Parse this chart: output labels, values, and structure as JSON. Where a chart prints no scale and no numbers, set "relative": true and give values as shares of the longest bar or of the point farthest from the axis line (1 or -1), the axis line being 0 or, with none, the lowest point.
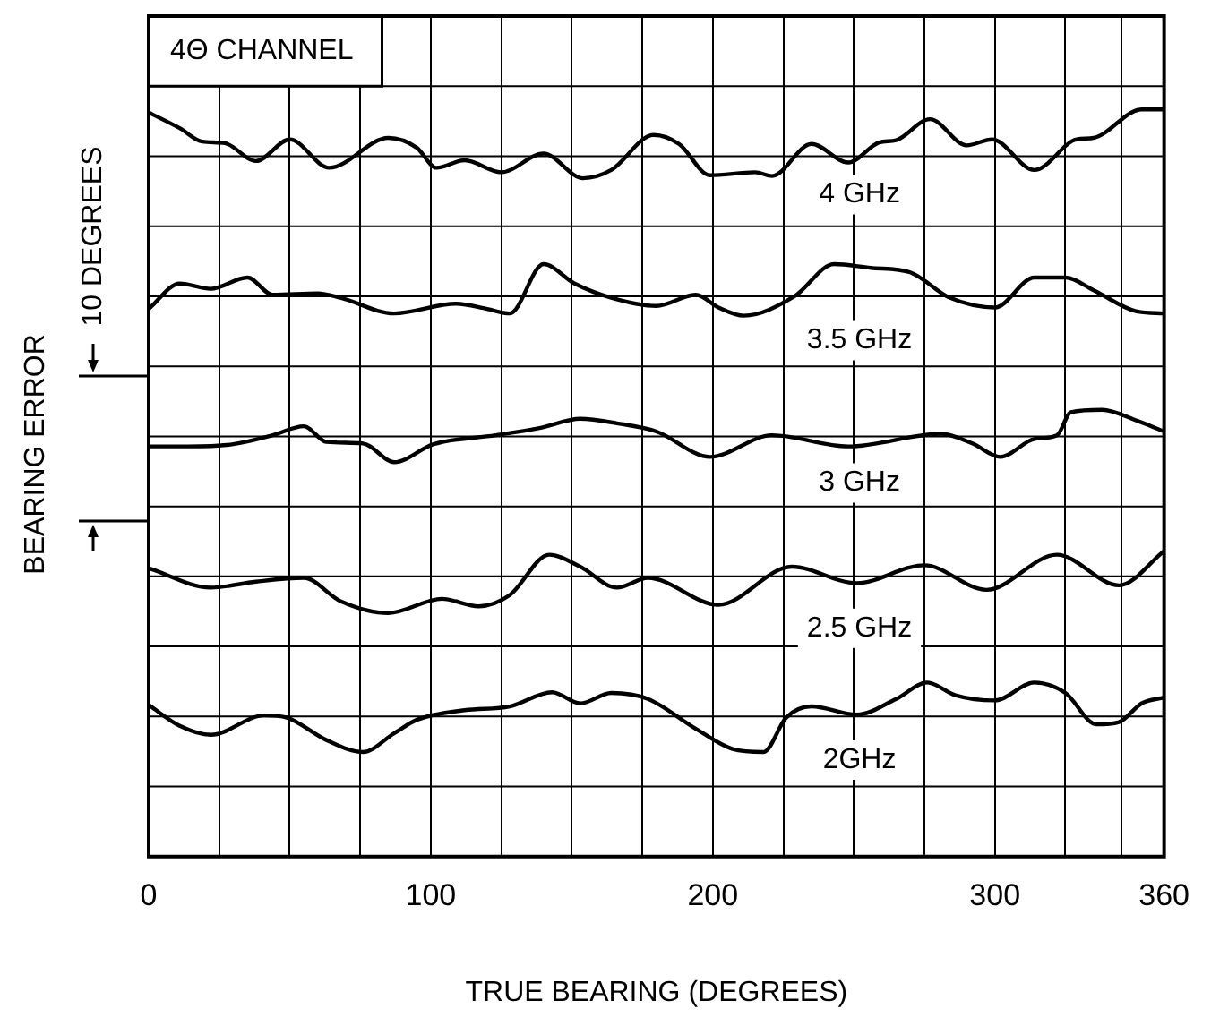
{
  "chart_data": {
    "type": "line",
    "relative": true,
    "marker": "none",
    "grid": true,
    "legend": false,
    "xlabel": "TRUE BEARING (DEGREES)",
    "ylabel": "BEARING ERROR",
    "annotations": [
      "4Θ CHANNEL",
      "10 DEGREES"
    ],
    "xlim": [
      0,
      360
    ],
    "xticks": [
      0,
      {
        "value": 25,
        "label": null
      },
      {
        "value": 50,
        "label": null
      },
      {
        "value": 75,
        "label": null
      },
      100,
      {
        "value": 125,
        "label": null
      },
      {
        "value": 150,
        "label": null
      },
      {
        "value": 175,
        "label": null
      },
      200,
      {
        "value": 225,
        "label": null
      },
      {
        "value": 250,
        "label": null
      },
      {
        "value": 275,
        "label": null
      },
      300,
      {
        "value": 325,
        "label": null
      },
      {
        "value": 345,
        "label": null
      },
      360
    ],
    "series": [
      {
        "name": "4 GHz",
        "color": "#000000",
        "x": [
          0,
          11,
          19,
          27,
          38,
          50,
          64,
          85,
          95,
          102,
          112,
          125,
          140,
          154,
          164,
          179,
          188,
          199,
          215,
          221,
          235,
          248,
          259,
          265,
          277,
          290,
          299,
          314,
          329,
          335,
          352,
          360
        ],
        "values": [
          0.996,
          0.975,
          0.957,
          0.955,
          0.931,
          0.96,
          0.922,
          0.962,
          0.949,
          0.922,
          0.932,
          0.916,
          0.941,
          0.908,
          0.919,
          0.966,
          0.954,
          0.912,
          0.916,
          0.911,
          0.954,
          0.929,
          0.956,
          0.959,
          0.987,
          0.952,
          0.96,
          0.919,
          0.96,
          0.962,
          1,
          1
        ]
      },
      {
        "name": "3.5 GHz",
        "color": "#000000",
        "x": [
          0,
          11,
          22,
          35,
          44,
          60,
          68,
          87,
          109,
          120,
          128,
          140,
          151,
          164,
          180,
          194,
          202,
          211,
          229,
          243,
          256,
          270,
          284,
          300,
          314,
          325,
          335,
          350,
          360
        ],
        "values": [
          0.733,
          0.767,
          0.76,
          0.775,
          0.752,
          0.754,
          0.748,
          0.727,
          0.74,
          0.733,
          0.727,
          0.793,
          0.767,
          0.748,
          0.737,
          0.752,
          0.735,
          0.724,
          0.75,
          0.793,
          0.788,
          0.782,
          0.748,
          0.735,
          0.775,
          0.775,
          0.758,
          0.73,
          0.727
        ]
      },
      {
        "name": "3 GHz",
        "color": "#000000",
        "x": [
          0,
          14,
          30,
          44,
          55,
          63,
          76,
          87,
          101,
          123,
          139,
          153,
          166,
          180,
          199,
          221,
          248,
          281,
          292,
          302,
          314,
          322,
          327,
          338,
          350,
          360
        ],
        "values": [
          0.549,
          0.549,
          0.552,
          0.564,
          0.576,
          0.555,
          0.553,
          0.528,
          0.552,
          0.564,
          0.574,
          0.586,
          0.58,
          0.569,
          0.535,
          0.564,
          0.549,
          0.566,
          0.553,
          0.535,
          0.559,
          0.564,
          0.595,
          0.598,
          0.584,
          0.569
        ]
      },
      {
        "name": "2.5 GHz",
        "color": "#000000",
        "x": [
          0,
          22,
          38,
          55,
          68,
          85,
          104,
          117,
          128,
          142,
          153,
          166,
          177,
          202,
          228,
          251,
          275,
          297,
          322,
          344,
          360
        ],
        "values": [
          0.386,
          0.36,
          0.368,
          0.373,
          0.342,
          0.326,
          0.345,
          0.335,
          0.35,
          0.404,
          0.388,
          0.36,
          0.373,
          0.337,
          0.388,
          0.366,
          0.39,
          0.357,
          0.404,
          0.363,
          0.409
        ]
      },
      {
        "name": "2GHz",
        "color": "#000000",
        "x": [
          0,
          11,
          22,
          41,
          49,
          63,
          76,
          87,
          95,
          112,
          128,
          143,
          153,
          164,
          177,
          194,
          207,
          218,
          226,
          235,
          251,
          265,
          276,
          286,
          300,
          314,
          325,
          336,
          344,
          352,
          360
        ],
        "values": [
          0.203,
          0.175,
          0.163,
          0.189,
          0.186,
          0.156,
          0.14,
          0.165,
          0.183,
          0.196,
          0.201,
          0.22,
          0.205,
          0.219,
          0.211,
          0.171,
          0.144,
          0.14,
          0.186,
          0.201,
          0.19,
          0.211,
          0.233,
          0.216,
          0.209,
          0.233,
          0.219,
          0.177,
          0.18,
          0.205,
          0.213
        ]
      }
    ]
  }
}
